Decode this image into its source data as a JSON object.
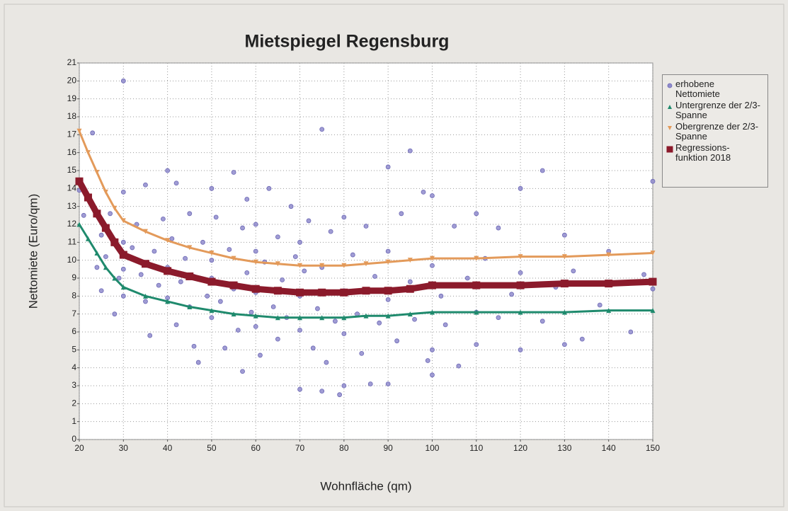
{
  "chart_data": {
    "type": "scatter",
    "title": "Mietspiegel Regensburg",
    "x_label": "Wohnfläche (qm)",
    "y_label": "Nettomiete (Euro/qm)",
    "xlim": [
      20,
      150
    ],
    "ylim": [
      0,
      21
    ],
    "xticks": [
      20,
      30,
      40,
      50,
      60,
      70,
      80,
      90,
      100,
      110,
      120,
      130,
      140,
      150
    ],
    "yticks": [
      0,
      1,
      2,
      3,
      4,
      5,
      6,
      7,
      8,
      9,
      10,
      11,
      12,
      13,
      14,
      15,
      16,
      17,
      18,
      19,
      20,
      21
    ],
    "grid": true,
    "legend": "right",
    "series": [
      {
        "name": "erhobene Nettomiete",
        "type": "scatter",
        "marker": "circle",
        "color": "#8f8bcc",
        "x": [
          20,
          21,
          23,
          24,
          25,
          25,
          26,
          27,
          28,
          29,
          30,
          30,
          30,
          30,
          30,
          32,
          33,
          34,
          35,
          35,
          36,
          37,
          38,
          39,
          40,
          40,
          40,
          41,
          42,
          42,
          43,
          44,
          45,
          45,
          46,
          46,
          47,
          48,
          49,
          50,
          50,
          50,
          50,
          51,
          52,
          53,
          54,
          55,
          55,
          56,
          57,
          57,
          58,
          58,
          59,
          60,
          60,
          60,
          60,
          61,
          62,
          63,
          64,
          65,
          65,
          66,
          67,
          68,
          69,
          70,
          70,
          70,
          70,
          71,
          72,
          73,
          74,
          75,
          75,
          75,
          76,
          77,
          78,
          79,
          80,
          80,
          80,
          80,
          82,
          83,
          84,
          85,
          86,
          87,
          88,
          90,
          90,
          90,
          90,
          92,
          93,
          95,
          95,
          96,
          98,
          99,
          100,
          100,
          100,
          100,
          102,
          103,
          105,
          106,
          108,
          110,
          110,
          110,
          112,
          115,
          115,
          118,
          120,
          120,
          120,
          125,
          125,
          128,
          130,
          130,
          132,
          134,
          138,
          140,
          145,
          148,
          150,
          150
        ],
        "values": [
          13.9,
          12.5,
          17.1,
          9.6,
          8.3,
          11.4,
          10.2,
          12.6,
          7.0,
          9.0,
          20.0,
          13.8,
          11.0,
          9.5,
          8.0,
          10.7,
          12.0,
          9.2,
          7.7,
          14.2,
          5.8,
          10.5,
          8.6,
          12.3,
          15.0,
          9.6,
          7.9,
          11.2,
          6.4,
          14.3,
          8.8,
          10.1,
          7.4,
          12.6,
          5.2,
          9.1,
          4.3,
          11.0,
          8.0,
          14.0,
          10.0,
          6.8,
          9.0,
          12.4,
          7.7,
          5.1,
          10.6,
          8.4,
          14.9,
          6.1,
          3.8,
          11.8,
          9.3,
          13.4,
          7.1,
          10.5,
          8.2,
          6.3,
          12.0,
          4.7,
          9.9,
          14.0,
          7.4,
          11.3,
          5.6,
          8.9,
          6.8,
          13.0,
          10.2,
          2.8,
          8.0,
          11.0,
          6.1,
          9.4,
          12.2,
          5.1,
          7.3,
          17.3,
          2.7,
          9.6,
          4.3,
          11.6,
          6.6,
          2.5,
          8.3,
          12.4,
          3.0,
          5.9,
          10.3,
          7.0,
          4.8,
          11.9,
          3.1,
          9.1,
          6.5,
          15.2,
          7.8,
          3.1,
          10.5,
          5.5,
          12.6,
          16.1,
          8.8,
          6.7,
          13.8,
          4.4,
          13.6,
          9.7,
          5.0,
          3.6,
          8.0,
          6.4,
          11.9,
          4.1,
          9.0,
          12.6,
          7.1,
          5.3,
          10.1,
          11.8,
          6.8,
          8.1,
          14.0,
          9.3,
          5.0,
          15.0,
          6.6,
          8.5,
          11.4,
          5.3,
          9.4,
          5.6,
          7.5,
          10.5,
          6.0,
          9.2,
          14.4,
          8.4
        ]
      },
      {
        "name": "Untergrenze der 2/3-Spanne",
        "type": "line",
        "marker": "triangle",
        "color": "#1f8a6d",
        "x": [
          20,
          22,
          24,
          26,
          28,
          30,
          35,
          40,
          45,
          50,
          55,
          60,
          65,
          70,
          75,
          80,
          85,
          90,
          95,
          100,
          110,
          120,
          130,
          140,
          150
        ],
        "values": [
          12.0,
          11.2,
          10.4,
          9.6,
          9.0,
          8.5,
          8.0,
          7.7,
          7.4,
          7.2,
          7.0,
          6.9,
          6.8,
          6.8,
          6.8,
          6.8,
          6.9,
          6.9,
          7.0,
          7.1,
          7.1,
          7.1,
          7.1,
          7.2,
          7.2
        ]
      },
      {
        "name": "Obergrenze der 2/3-Spanne",
        "type": "line",
        "marker": "triangle-down",
        "color": "#e39a5a",
        "x": [
          20,
          22,
          24,
          26,
          28,
          30,
          35,
          40,
          45,
          50,
          55,
          60,
          65,
          70,
          75,
          80,
          85,
          90,
          95,
          100,
          110,
          120,
          130,
          140,
          150
        ],
        "values": [
          17.2,
          16.0,
          14.9,
          13.8,
          12.9,
          12.2,
          11.6,
          11.1,
          10.7,
          10.4,
          10.1,
          9.9,
          9.8,
          9.7,
          9.7,
          9.7,
          9.8,
          9.9,
          10.0,
          10.1,
          10.1,
          10.2,
          10.2,
          10.3,
          10.4
        ]
      },
      {
        "name": "Regressions-funktion 2018",
        "type": "line",
        "marker": "square",
        "color": "#8b1a2b",
        "x": [
          20,
          22,
          24,
          26,
          28,
          30,
          35,
          40,
          45,
          50,
          55,
          60,
          65,
          70,
          75,
          80,
          85,
          90,
          95,
          100,
          110,
          120,
          130,
          140,
          150
        ],
        "values": [
          14.4,
          13.5,
          12.6,
          11.8,
          11.0,
          10.3,
          9.8,
          9.4,
          9.1,
          8.8,
          8.6,
          8.4,
          8.3,
          8.2,
          8.2,
          8.2,
          8.3,
          8.3,
          8.4,
          8.6,
          8.6,
          8.6,
          8.7,
          8.7,
          8.8
        ]
      }
    ]
  }
}
